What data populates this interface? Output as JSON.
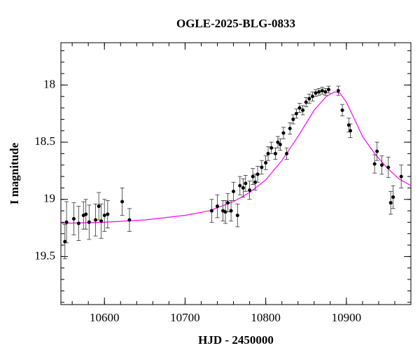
{
  "chart_data": {
    "type": "scatter",
    "title": "OGLE-2025-BLG-0833",
    "x_label": "HJD - 2450000",
    "y_label": "I magnitude",
    "xlim": [
      10546,
      10980
    ],
    "ylim": [
      19.92,
      17.63
    ],
    "xticks": [
      10600,
      10700,
      10800,
      10900
    ],
    "yticks": [
      18,
      18.5,
      19,
      19.5
    ],
    "y_inverted": true,
    "point_color": "#000000",
    "points": {
      "x": [
        10551,
        10553,
        10562,
        10568,
        10574,
        10577,
        10581,
        10589,
        10593,
        10596,
        10600,
        10604,
        10622,
        10631,
        10733,
        10740,
        10747,
        10750,
        10753,
        10757,
        10760,
        10765,
        10768,
        10772,
        10775,
        10780,
        10784,
        10787,
        10790,
        10795,
        10800,
        10803,
        10807,
        10812,
        10815,
        10818,
        10822,
        10826,
        10830,
        10834,
        10838,
        10842,
        10846,
        10850,
        10854,
        10858,
        10862,
        10866,
        10870,
        10874,
        10878,
        10890,
        10895,
        10903,
        10905,
        10935,
        10938,
        10944,
        10952,
        10955,
        10958,
        10968
      ],
      "y": [
        19.37,
        19.2,
        19.17,
        19.21,
        19.14,
        19.13,
        19.2,
        19.18,
        19.06,
        19.19,
        19.14,
        19.13,
        19.02,
        19.18,
        19.1,
        19.06,
        19.1,
        19.11,
        19.03,
        19.1,
        18.93,
        19.14,
        18.88,
        18.9,
        18.86,
        18.92,
        18.8,
        18.85,
        18.78,
        18.72,
        18.68,
        18.6,
        18.55,
        18.6,
        18.5,
        18.52,
        18.42,
        18.6,
        18.38,
        18.3,
        18.25,
        18.2,
        18.22,
        18.15,
        18.12,
        18.1,
        18.07,
        18.06,
        18.05,
        18.06,
        18.04,
        18.05,
        18.22,
        18.35,
        18.4,
        18.69,
        18.58,
        18.7,
        18.72,
        19.03,
        18.98,
        18.8
      ],
      "yerr": [
        0.15,
        0.18,
        0.14,
        0.15,
        0.12,
        0.13,
        0.15,
        0.14,
        0.12,
        0.15,
        0.14,
        0.12,
        0.12,
        0.1,
        0.1,
        0.1,
        0.09,
        0.1,
        0.08,
        0.09,
        0.08,
        0.1,
        0.08,
        0.08,
        0.07,
        0.08,
        0.07,
        0.07,
        0.07,
        0.06,
        0.06,
        0.06,
        0.05,
        0.05,
        0.05,
        0.05,
        0.05,
        0.05,
        0.05,
        0.04,
        0.04,
        0.04,
        0.04,
        0.04,
        0.04,
        0.04,
        0.03,
        0.03,
        0.03,
        0.03,
        0.03,
        0.04,
        0.05,
        0.06,
        0.06,
        0.08,
        0.08,
        0.08,
        0.09,
        0.1,
        0.1,
        0.1
      ]
    },
    "model": {
      "color": "#ff00ff",
      "x": [
        10546,
        10600,
        10650,
        10700,
        10730,
        10760,
        10780,
        10800,
        10820,
        10840,
        10860,
        10875,
        10885,
        10892,
        10900,
        10910,
        10920,
        10935,
        10950,
        10965,
        10980
      ],
      "y": [
        19.21,
        19.2,
        19.18,
        19.14,
        19.1,
        19.02,
        18.94,
        18.83,
        18.66,
        18.45,
        18.22,
        18.1,
        18.06,
        18.07,
        18.15,
        18.3,
        18.45,
        18.6,
        18.72,
        18.82,
        18.88
      ]
    }
  }
}
